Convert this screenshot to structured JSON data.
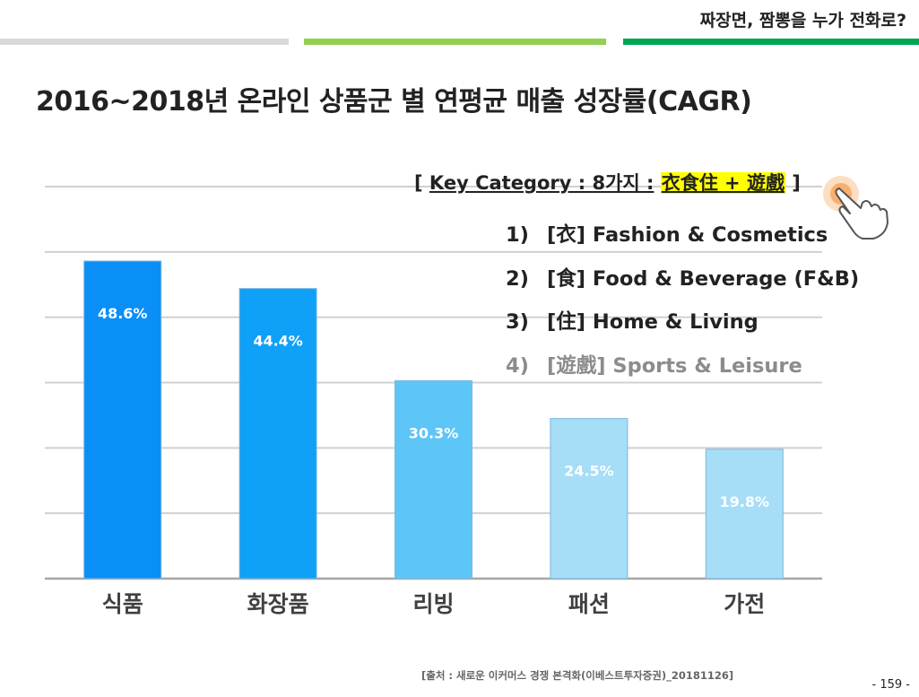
{
  "header": {
    "top_title": "짜장면, 짬뽕을 누가 전화로?",
    "colors": {
      "bar_left": "#d9d9d9",
      "bar_middle": "#92d050",
      "bar_right": "#00a651"
    }
  },
  "slide_title": "2016~2018년 온라인 상품군 별 연평균 매출 성장률(CAGR)",
  "key_category": {
    "open_bracket": "[",
    "label": "Key Category : 8가지 :",
    "highlight": "衣食住 + 遊戲",
    "close_bracket": "]",
    "highlight_color": "#ffff00"
  },
  "categories": [
    {
      "num": "1)",
      "label": "[衣] Fashion & Cosmetics",
      "dimmed": false
    },
    {
      "num": "2)",
      "label": "[食] Food & Beverage (F&B)",
      "dimmed": false
    },
    {
      "num": "3)",
      "label": "[住] Home & Living",
      "dimmed": false
    },
    {
      "num": "4)",
      "label": "[遊戲] Sports & Leisure",
      "dimmed": true
    }
  ],
  "chart_data": {
    "type": "bar",
    "title": "2016~2018년 온라인 상품군 별 연평균 매출 성장률(CAGR)",
    "categories": [
      "식품",
      "화장품",
      "리빙",
      "패션",
      "가전"
    ],
    "values": [
      48.6,
      44.4,
      30.3,
      24.5,
      19.8
    ],
    "value_labels": [
      "48.6%",
      "44.4%",
      "30.3%",
      "24.5%",
      "19.8%"
    ],
    "bar_colors": [
      "#0a8ff7",
      "#0fa0f7",
      "#5ec5f7",
      "#a6ddf7",
      "#a6ddf7"
    ],
    "ylim": [
      0,
      60
    ],
    "gridlines": [
      0,
      10,
      20,
      30,
      40,
      50,
      60
    ],
    "grid": true,
    "xlabel": "",
    "ylabel": ""
  },
  "footer": {
    "source": "[출처 : 새로운 이커머스 경쟁 본격화(이베스트투자증권)_20181126]",
    "page": "- 159 -"
  }
}
